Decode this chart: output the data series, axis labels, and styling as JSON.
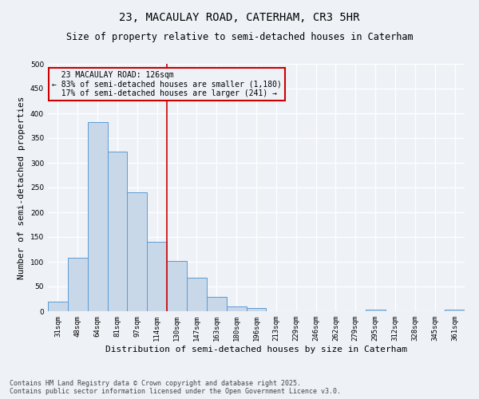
{
  "title_line1": "23, MACAULAY ROAD, CATERHAM, CR3 5HR",
  "title_line2": "Size of property relative to semi-detached houses in Caterham",
  "xlabel": "Distribution of semi-detached houses by size in Caterham",
  "ylabel": "Number of semi-detached properties",
  "categories": [
    "31sqm",
    "48sqm",
    "64sqm",
    "81sqm",
    "97sqm",
    "114sqm",
    "130sqm",
    "147sqm",
    "163sqm",
    "180sqm",
    "196sqm",
    "213sqm",
    "229sqm",
    "246sqm",
    "262sqm",
    "279sqm",
    "295sqm",
    "312sqm",
    "328sqm",
    "345sqm",
    "361sqm"
  ],
  "values": [
    19,
    108,
    383,
    323,
    241,
    141,
    101,
    68,
    29,
    9,
    6,
    0,
    0,
    0,
    0,
    0,
    3,
    0,
    0,
    0,
    3
  ],
  "bar_color": "#c8d8e8",
  "bar_edge_color": "#5b9bd5",
  "vline_index": 6,
  "vline_color": "#cc0000",
  "annotation_line1": "  23 MACAULAY ROAD: 126sqm",
  "annotation_line2": "← 83% of semi-detached houses are smaller (1,180)",
  "annotation_line3": "  17% of semi-detached houses are larger (241) →",
  "annotation_box_color": "#cc0000",
  "footer_text": "Contains HM Land Registry data © Crown copyright and database right 2025.\nContains public sector information licensed under the Open Government Licence v3.0.",
  "ylim": [
    0,
    500
  ],
  "yticks": [
    0,
    50,
    100,
    150,
    200,
    250,
    300,
    350,
    400,
    450,
    500
  ],
  "background_color": "#eef2f7",
  "grid_color": "#ffffff",
  "title_fontsize": 10,
  "subtitle_fontsize": 8.5,
  "axis_label_fontsize": 8,
  "tick_fontsize": 6.5,
  "annotation_fontsize": 7,
  "footer_fontsize": 6
}
